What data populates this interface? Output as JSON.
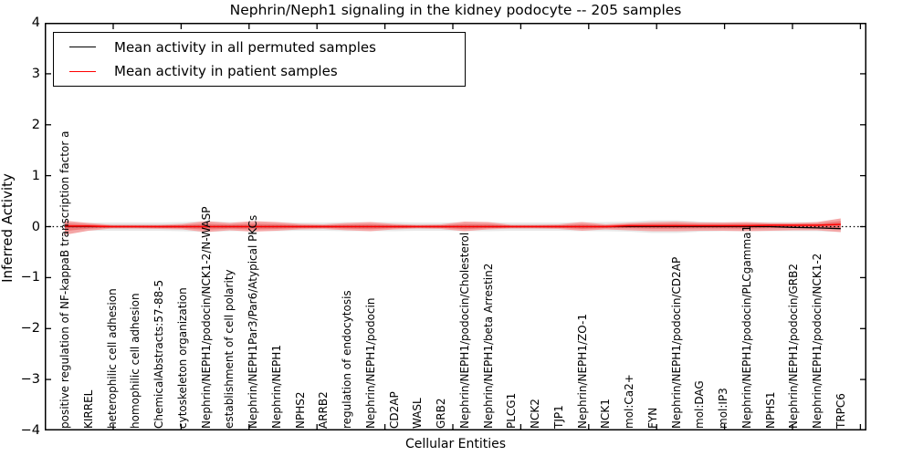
{
  "chart_data": {
    "type": "line",
    "title": "Nephrin/Neph1 signaling in the kidney podocyte -- 205 samples",
    "xlabel": "Cellular Entities",
    "ylabel": "Inferred Activity",
    "ylim": [
      -4,
      4
    ],
    "ytick_labels": [
      "4",
      "3",
      "2",
      "1",
      "0",
      "−1",
      "−2",
      "−3",
      "−4"
    ],
    "ytick_values": [
      4,
      3,
      2,
      1,
      0,
      -1,
      -2,
      -3,
      -4
    ],
    "grid": false,
    "legend_position": "upper-left",
    "categories": [
      "positive regulation of NF-kappaB transcription factor a",
      "KIRREL",
      "heterophilic cell adhesion",
      "homophilic cell adhesion",
      "ChemicalAbstracts:57-88-5",
      "cytoskeleton organization",
      "Nephrin/NEPH1/podocin/NCK1-2/N-WASP",
      "establishment of cell polarity",
      "Nephrin/NEPH1Par3/Par6/Atypical PKCs",
      "Nephrin/NEPH1",
      "NPHS2",
      "ARRB2",
      "regulation of endocytosis",
      "Nephrin/NEPH1/podocin",
      "CD2AP",
      "WASL",
      "GRB2",
      "Nephrin/NEPH1/podocin/Cholesterol",
      "Nephrin/NEPH1/beta Arrestin2",
      "PLCG1",
      "NCK2",
      "TJP1",
      "Nephrin/NEPH1/ZO-1",
      "NCK1",
      "mol:Ca2+",
      "FYN",
      "Nephrin/NEPH1/podocin/CD2AP",
      "mol:DAG",
      "mol:IP3",
      "Nephrin/NEPH1/podocin/PLCgamma1",
      "NPHS1",
      "Nephrin/NEPH1/podocin/GRB2",
      "Nephrin/NEPH1/podocin/NCK1-2",
      "TRPC6"
    ],
    "series": [
      {
        "name": "Mean activity in all permuted samples",
        "color": "#000000",
        "values": [
          0,
          0,
          0,
          0,
          0,
          0,
          0,
          0,
          0,
          0,
          0,
          0,
          0,
          0,
          0,
          0,
          0,
          0,
          0,
          0,
          0,
          0,
          0,
          0,
          0,
          0,
          0,
          0,
          0,
          0,
          0,
          -0.015,
          -0.025,
          -0.04
        ]
      },
      {
        "name": "Mean activity in patient samples",
        "color": "#ff0000",
        "values": [
          0.01,
          0.01,
          0,
          0,
          0,
          0,
          0,
          0,
          0,
          0,
          0,
          0,
          0,
          0,
          0,
          0,
          0,
          0,
          0,
          0,
          0,
          0,
          0,
          0,
          0.018,
          0.018,
          0.018,
          0.018,
          0.018,
          0.018,
          0.027,
          0.027,
          0.027,
          0.045
        ]
      }
    ],
    "bands": [
      {
        "name": "permuted-samples-spread",
        "outer_color": "#e8e8e8",
        "inner_color": "#dcdcdc",
        "upper": [
          0.089,
          0.08,
          0.08,
          0.08,
          0.08,
          0.089,
          0.107,
          0.089,
          0.089,
          0.089,
          0.08,
          0.08,
          0.089,
          0.089,
          0.089,
          0.08,
          0.08,
          0.089,
          0.089,
          0.08,
          0.08,
          0.08,
          0.089,
          0.089,
          0.098,
          0.125,
          0.125,
          0.098,
          0.089,
          0.089,
          0.089,
          0.089,
          0.089,
          0.107
        ],
        "lower": [
          -0.089,
          -0.08,
          -0.08,
          -0.08,
          -0.08,
          -0.089,
          -0.107,
          -0.089,
          -0.089,
          -0.089,
          -0.08,
          -0.08,
          -0.089,
          -0.089,
          -0.089,
          -0.08,
          -0.08,
          -0.089,
          -0.089,
          -0.08,
          -0.08,
          -0.08,
          -0.089,
          -0.089,
          -0.098,
          -0.125,
          -0.125,
          -0.098,
          -0.089,
          -0.089,
          -0.089,
          -0.089,
          -0.089,
          -0.107
        ]
      },
      {
        "name": "patient-samples-spread",
        "outer_color": "#f4a6a6",
        "inner_color": "#ee7979",
        "upper": [
          0.116,
          0.072,
          0.036,
          0.036,
          0.036,
          0.054,
          0.107,
          0.072,
          0.107,
          0.089,
          0.054,
          0.045,
          0.072,
          0.089,
          0.054,
          0.036,
          0.045,
          0.098,
          0.089,
          0.036,
          0.036,
          0.045,
          0.089,
          0.045,
          0.072,
          0.089,
          0.098,
          0.08,
          0.08,
          0.089,
          0.072,
          0.072,
          0.089,
          0.161
        ],
        "lower": [
          -0.161,
          -0.08,
          -0.036,
          -0.036,
          -0.045,
          -0.054,
          -0.107,
          -0.072,
          -0.098,
          -0.08,
          -0.054,
          -0.045,
          -0.072,
          -0.089,
          -0.054,
          -0.036,
          -0.045,
          -0.089,
          -0.054,
          -0.036,
          -0.036,
          -0.045,
          -0.08,
          -0.054,
          -0.072,
          -0.089,
          -0.089,
          -0.08,
          -0.08,
          -0.089,
          -0.08,
          -0.072,
          -0.072,
          -0.107
        ]
      }
    ],
    "zero_line": {
      "value": 0,
      "style": "dotted",
      "color": "#000000"
    }
  },
  "legend": {
    "entries": [
      {
        "label": "Mean activity in all permuted samples",
        "color": "#000000"
      },
      {
        "label": "Mean activity in patient samples",
        "color": "#ff0000"
      }
    ]
  }
}
